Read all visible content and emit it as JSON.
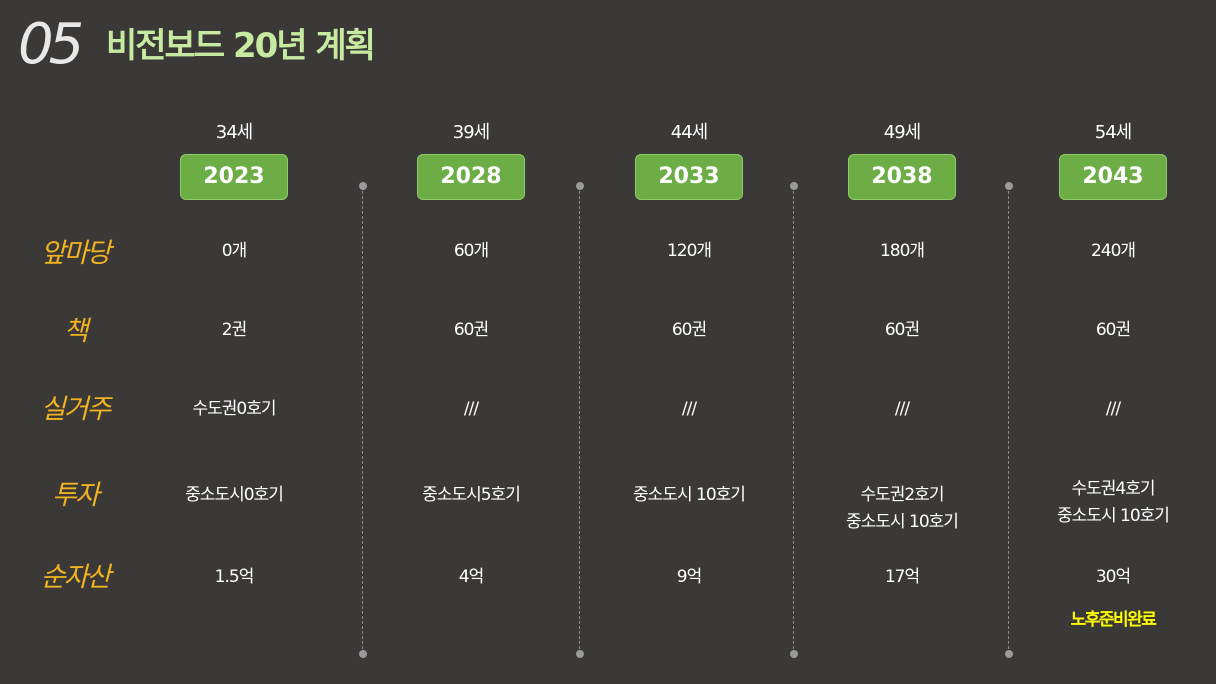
{
  "title": {
    "number": "05",
    "text": "비전보드 20년 계획"
  },
  "row_labels": [
    "앞마당",
    "책",
    "실거주",
    "투자",
    "순자산"
  ],
  "columns": [
    {
      "age": "34세",
      "year": "2023",
      "yard": "0개",
      "books": "2권",
      "residence": "수도권0호기",
      "investment": [
        "중소도시0호기"
      ],
      "net_worth": "1.5억"
    },
    {
      "age": "39세",
      "year": "2028",
      "yard": "60개",
      "books": "60권",
      "residence": "///",
      "investment": [
        "중소도시5호기"
      ],
      "net_worth": "4억"
    },
    {
      "age": "44세",
      "year": "2033",
      "yard": "120개",
      "books": "60권",
      "residence": "///",
      "investment": [
        "중소도시 10호기"
      ],
      "net_worth": "9억"
    },
    {
      "age": "49세",
      "year": "2038",
      "yard": "180개",
      "books": "60권",
      "residence": "///",
      "investment": [
        "수도권2호기",
        "중소도시 10호기"
      ],
      "net_worth": "17억"
    },
    {
      "age": "54세",
      "year": "2043",
      "yard": "240개",
      "books": "60권",
      "residence": "///",
      "investment": [
        "수도권4호기",
        "중소도시 10호기"
      ],
      "net_worth": "30억",
      "note": "노후준비완료"
    }
  ],
  "colors": {
    "background": "#3a3937",
    "accent_green": "#6cad45",
    "label_orange": "#f2b320",
    "title_green": "#c6eba0",
    "note_yellow": "#ffff00"
  }
}
